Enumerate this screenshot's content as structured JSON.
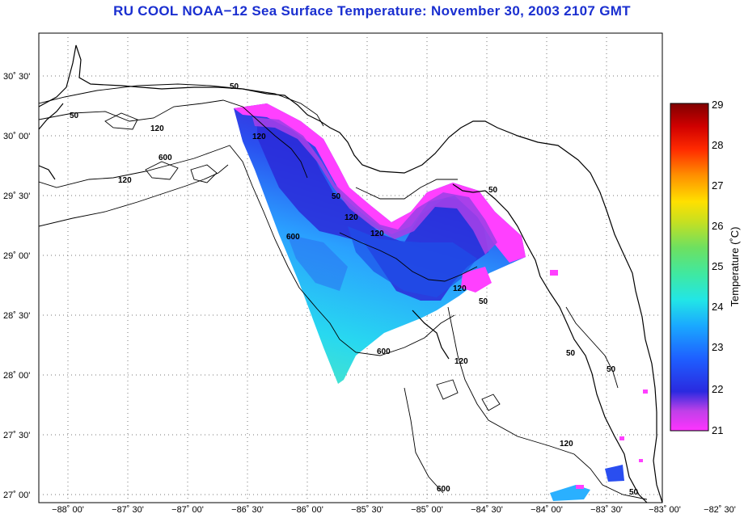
{
  "title": "RU COOL  NOAA−12  Sea Surface Temperature:  November 30, 2003 2107 GMT",
  "lat_labels": [
    "30˚ 30'",
    "30˚ 00'",
    "29˚ 30'",
    "29˚ 00'",
    "28˚ 30'",
    "28˚ 00'",
    "27˚ 30'",
    "27˚ 00'"
  ],
  "lon_labels": [
    "−88˚ 00'",
    "−87˚ 30'",
    "−87˚ 00'",
    "−86˚ 30'",
    "−86˚ 00'",
    "−85˚ 30'",
    "−85˚ 00'",
    "−84˚ 30'",
    "−84˚ 00'",
    "−83˚ 30'",
    "−83˚ 00'",
    "−82˚ 30'"
  ],
  "contour_labels": [
    "50",
    "50",
    "120",
    "120",
    "120",
    "600",
    "50",
    "120",
    "600",
    "120",
    "120",
    "50",
    "600",
    "120",
    "50",
    "50",
    "50",
    "120",
    "600",
    "50"
  ],
  "colorbar": {
    "label": "Temperature (˚C)",
    "ticks": [
      "29",
      "28",
      "27",
      "26",
      "25",
      "24",
      "23",
      "22",
      "21"
    ]
  },
  "colors": {
    "title": "#1a2fd0"
  }
}
